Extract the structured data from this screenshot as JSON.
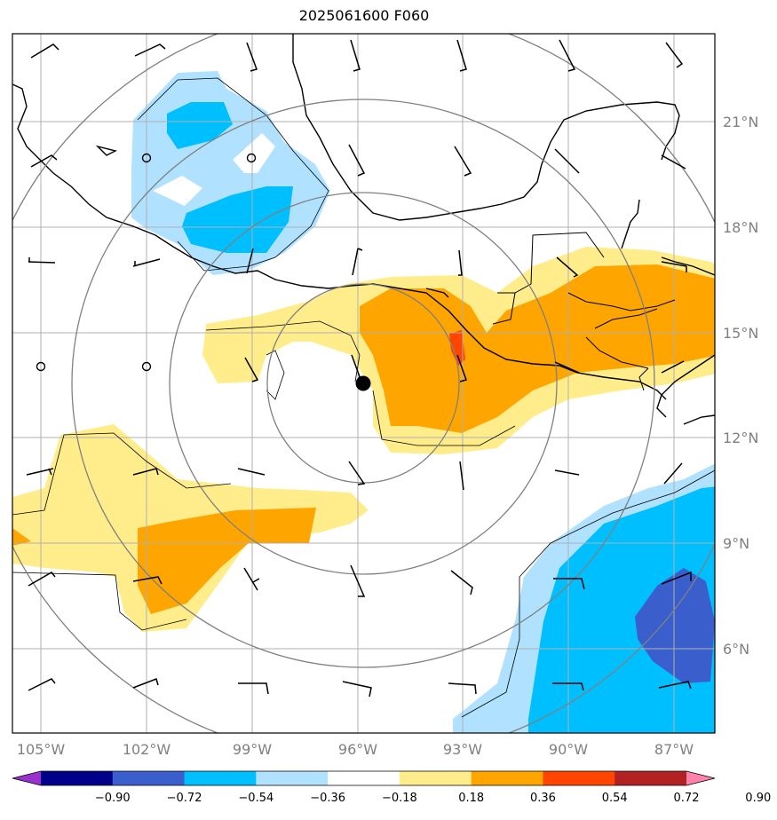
{
  "title": "2025061600 F060",
  "map": {
    "lon_range": [
      -106.25,
      -86.25
    ],
    "lat_range": [
      3.5,
      23.5
    ],
    "lat_ticks": [
      "21°N",
      "18°N",
      "15°N",
      "12°N",
      "9°N",
      "6°N"
    ],
    "lon_ticks": [
      "105°W",
      "102°W",
      "99°W",
      "96°W",
      "93°W",
      "90°W",
      "87°W"
    ],
    "center_marker": {
      "lon": -95.8,
      "lat": 13.6
    },
    "range_rings": 4,
    "grid": true
  },
  "colorbar": {
    "labels": [
      "−0.90",
      "−0.72",
      "−0.54",
      "−0.36",
      "−0.18",
      "0.18",
      "0.36",
      "0.54",
      "0.72",
      "0.90"
    ],
    "colors": [
      "#9932cc",
      "#00008b",
      "#3a5fcd",
      "#00bfff",
      "#b0e2ff",
      "#ffffff",
      "#ffec8b",
      "#ffa500",
      "#ff4500",
      "#b22222",
      "#ff82ab"
    ],
    "extend": "both"
  }
}
